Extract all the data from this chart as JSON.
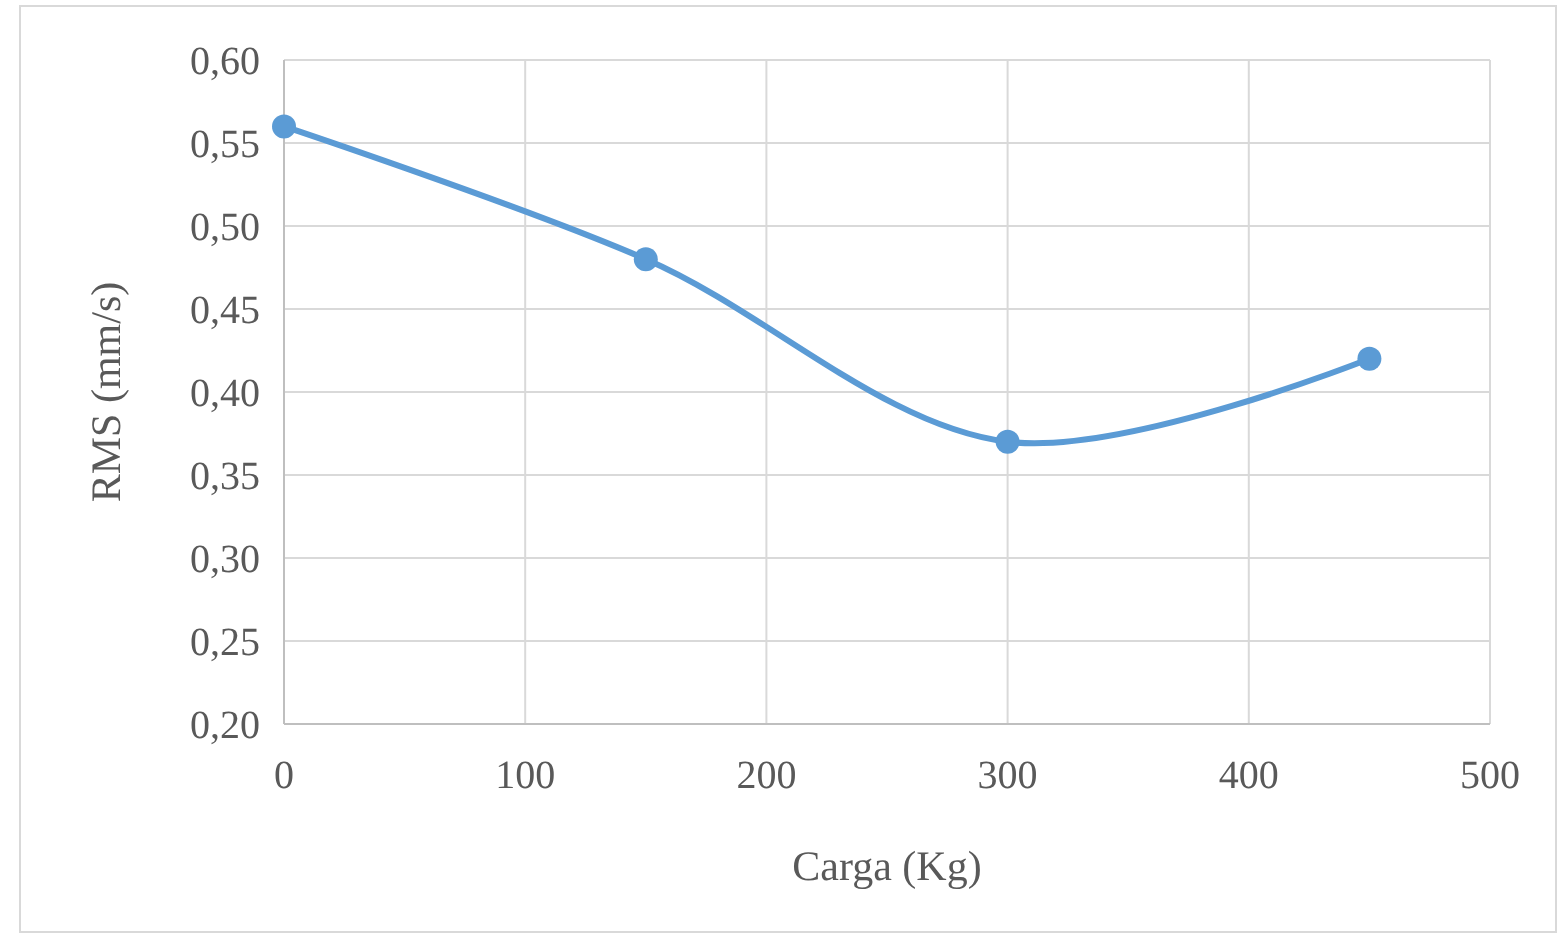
{
  "chart_data": {
    "type": "line",
    "xlabel": "Carga (Kg)",
    "ylabel": "RMS (mm/s)",
    "x": [
      0,
      150,
      300,
      450
    ],
    "series": [
      {
        "color": "#5b9bd5",
        "values": [
          0.56,
          0.48,
          0.37,
          0.42
        ]
      }
    ],
    "xlim": [
      0,
      500
    ],
    "xticks": [
      0,
      100,
      200,
      300,
      400,
      500
    ],
    "ylim": [
      0.2,
      0.6
    ],
    "yticks": [
      {
        "value": 0.2,
        "label": "0,20"
      },
      {
        "value": 0.25,
        "label": "0,25"
      },
      {
        "value": 0.3,
        "label": "0,30"
      },
      {
        "value": 0.35,
        "label": "0,35"
      },
      {
        "value": 0.4,
        "label": "0,40"
      },
      {
        "value": 0.45,
        "label": "0,45"
      },
      {
        "value": 0.5,
        "label": "0,50"
      },
      {
        "value": 0.55,
        "label": "0,55"
      },
      {
        "value": 0.6,
        "label": "0,60"
      }
    ],
    "grid": true,
    "marker": "circle",
    "line_style": "solid"
  }
}
